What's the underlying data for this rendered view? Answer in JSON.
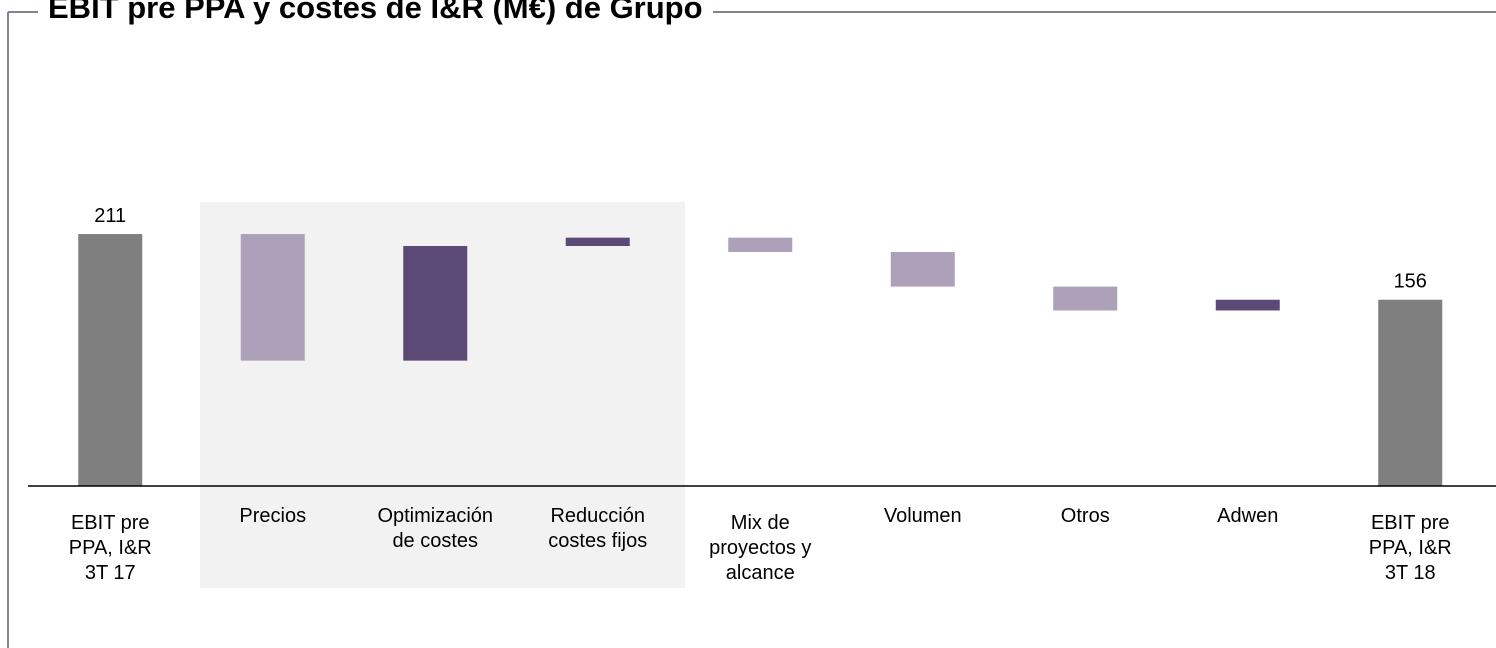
{
  "chart_data": {
    "type": "waterfall",
    "title": "EBIT pre PPA y costes de I&R (M€) de Grupo",
    "categories": [
      "EBIT pre\nPPA, I&R\n3T 17",
      "Precios",
      "Optimización\nde costes",
      "Reducción\ncostes fijos",
      "Mix de\nproyectos y\nalcance",
      "Volumen",
      "Otros",
      "Adwen",
      "EBIT pre\nPPA, I&R\n3T 18"
    ],
    "values": [
      211,
      -106,
      96,
      7,
      -12,
      -29,
      -20,
      9,
      156
    ],
    "total_color": "#7f7f7f",
    "increase_color": "#5b4a75",
    "decrease_color": "#aca1b8"
  }
}
